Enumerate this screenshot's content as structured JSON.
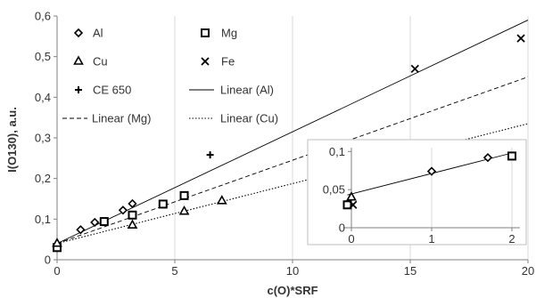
{
  "chart_data": [
    {
      "type": "scatter",
      "xlabel": "c(O)*SRF",
      "ylabel": "I(O130), a.u.",
      "xlim": [
        0,
        20
      ],
      "ylim": [
        0,
        0.6
      ],
      "x_ticks": [
        0,
        5,
        10,
        15,
        20
      ],
      "x_tick_labels": [
        "0",
        "5",
        "10",
        "15",
        "20"
      ],
      "y_ticks": [
        0,
        0.1,
        0.2,
        0.3,
        0.4,
        0.5,
        0.6
      ],
      "y_tick_labels": [
        "0",
        "0,1",
        "0,2",
        "0,3",
        "0,4",
        "0,5",
        "0,6"
      ],
      "grid": "vertical",
      "legend_position": "top-left",
      "series": [
        {
          "name": "Al",
          "marker": "diamond",
          "color": "#000000",
          "x": [
            0,
            1,
            1.6,
            2.8,
            3.2
          ],
          "y": [
            0.03,
            0.074,
            0.092,
            0.122,
            0.138
          ]
        },
        {
          "name": "Mg",
          "marker": "square",
          "color": "#000000",
          "x": [
            0,
            2,
            3.2,
            4.5,
            5.4
          ],
          "y": [
            0.03,
            0.094,
            0.11,
            0.137,
            0.158
          ]
        },
        {
          "name": "Cu",
          "marker": "triangle",
          "color": "#000000",
          "x": [
            0,
            3.2,
            5.4,
            7
          ],
          "y": [
            0.04,
            0.085,
            0.119,
            0.145
          ]
        },
        {
          "name": "Fe",
          "marker": "x",
          "color": "#000000",
          "x": [
            15.2,
            19.7
          ],
          "y": [
            0.47,
            0.545
          ]
        },
        {
          "name": "CE 650",
          "marker": "plus",
          "color": "#000000",
          "x": [
            6.5
          ],
          "y": [
            0.258
          ]
        }
      ],
      "trendlines": [
        {
          "name": "Linear (Al)",
          "style": "solid",
          "color": "#000000",
          "x": [
            0,
            20
          ],
          "y": [
            0.04,
            0.59
          ]
        },
        {
          "name": "Linear (Mg)",
          "style": "dashed",
          "color": "#000000",
          "x": [
            0,
            20
          ],
          "y": [
            0.04,
            0.45
          ]
        },
        {
          "name": "Linear (Cu)",
          "style": "dotted",
          "color": "#000000",
          "x": [
            0,
            20
          ],
          "y": [
            0.04,
            0.335
          ]
        }
      ]
    },
    {
      "type": "scatter",
      "inset": true,
      "xlim": [
        -0.1,
        2.1
      ],
      "ylim": [
        0,
        0.105
      ],
      "x_ticks": [
        0,
        1,
        2
      ],
      "x_tick_labels": [
        "0",
        "1",
        "2"
      ],
      "y_ticks": [
        0,
        0.05,
        0.1
      ],
      "y_tick_labels": [
        "0",
        "0,05",
        "0,1"
      ],
      "grid": "vertical",
      "series": [
        {
          "name": "Al",
          "marker": "diamond",
          "x": [
            -0.02,
            1,
            1.7
          ],
          "y": [
            0.03,
            0.074,
            0.092
          ]
        },
        {
          "name": "Mg",
          "marker": "square",
          "x": [
            -0.05,
            2
          ],
          "y": [
            0.03,
            0.094
          ]
        },
        {
          "name": "Cu",
          "marker": "triangle",
          "x": [
            0
          ],
          "y": [
            0.04
          ]
        },
        {
          "name": "Fe",
          "marker": "x",
          "x": [
            0.02
          ],
          "y": [
            0.03
          ]
        }
      ],
      "trendlines": [
        {
          "name": "Linear (Al)",
          "style": "solid",
          "x": [
            -0.05,
            2
          ],
          "y": [
            0.043,
            0.098
          ]
        }
      ]
    }
  ]
}
